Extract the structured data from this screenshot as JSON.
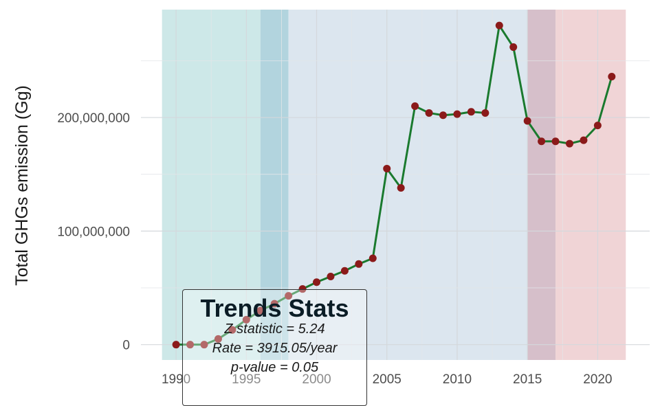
{
  "chart_data": {
    "type": "line",
    "xlabel": "",
    "ylabel": "Total GHGs emission (Gg)",
    "x": [
      1990,
      1991,
      1992,
      1993,
      1994,
      1995,
      1996,
      1997,
      1998,
      1999,
      2000,
      2001,
      2002,
      2003,
      2004,
      2005,
      2006,
      2007,
      2008,
      2009,
      2010,
      2011,
      2012,
      2013,
      2014,
      2015,
      2016,
      2017,
      2018,
      2019,
      2020,
      2021
    ],
    "series": [
      {
        "values": [
          0,
          0,
          0,
          5000000,
          13000000,
          22000000,
          30000000,
          36000000,
          43000000,
          49000000,
          55000000,
          60000000,
          65000000,
          71000000,
          76000000,
          155000000,
          138000000,
          210000000,
          204000000,
          202000000,
          203000000,
          205000000,
          204000000,
          281000000,
          262000000,
          197000000,
          179000000,
          179000000,
          177000000,
          180000000,
          193000000,
          236000000
        ]
      }
    ],
    "xlim": [
      1987.5,
      2023.7
    ],
    "ylim": [
      -13500000,
      295000000
    ],
    "x_ticks": [
      1990,
      1995,
      2000,
      2005,
      2010,
      2015,
      2020
    ],
    "y_ticks": [
      0,
      100000000,
      200000000
    ],
    "x_tick_labels": [
      "1990",
      "1995",
      "2000",
      "2005",
      "2010",
      "2015",
      "2020"
    ],
    "y_tick_labels": [
      "0",
      "100,000,000",
      "200,000,000"
    ],
    "grid": true,
    "line_color": "#1a7a2e",
    "point_color": "#8b1a1a",
    "shaded_regions": [
      {
        "start": 1989,
        "end": 1996,
        "color": "#cde8e8"
      },
      {
        "start": 1996,
        "end": 1998,
        "color": "#b2d4de"
      },
      {
        "start": 1998,
        "end": 2015,
        "color": "#dce6ef"
      },
      {
        "start": 2015,
        "end": 2017,
        "color": "#d6bfca"
      },
      {
        "start": 2017,
        "end": 2022,
        "color": "#f0d4d6"
      }
    ]
  },
  "stats_box": {
    "title": "Trends Stats",
    "lines": [
      "Z statistic = 5.24",
      "Rate = 3915.05/year",
      "p-value = 0.05"
    ]
  }
}
